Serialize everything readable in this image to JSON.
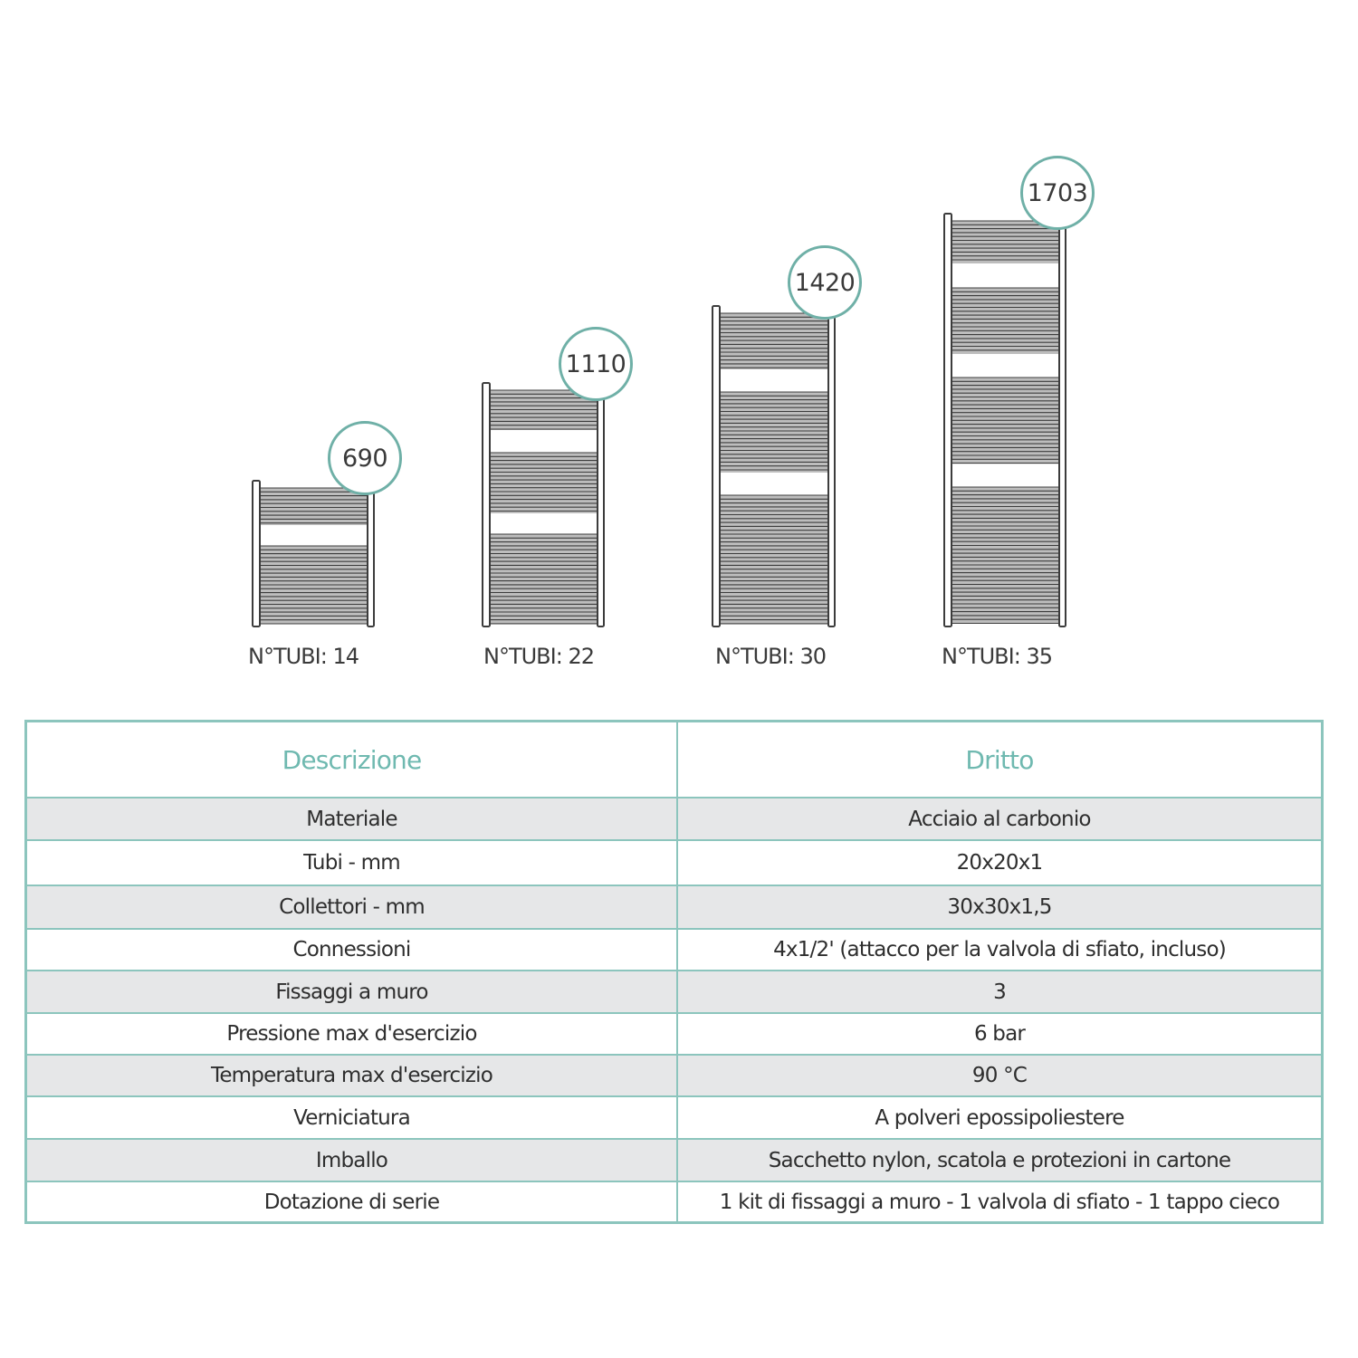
{
  "models": [
    {
      "height": 690,
      "tubes_label": "N°TUBI: 14",
      "tubes": 14
    },
    {
      "height": 1110,
      "tubes_label": "N°TUBI: 22",
      "tubes": 22
    },
    {
      "height": 1420,
      "tubes_label": "N°TUBI: 30",
      "tubes": 30
    },
    {
      "height": 1703,
      "tubes_label": "N°TUBI: 35",
      "tubes": 35
    }
  ],
  "colors": {
    "accent": "#6fb9b0",
    "border": "#8cc5bd",
    "row_gray": "#e6e7e8"
  },
  "table": {
    "headers": [
      "Descrizione",
      "Dritto"
    ],
    "rows": [
      [
        "Materiale",
        "Acciaio al carbonio"
      ],
      [
        "Tubi - mm",
        "20x20x1"
      ],
      [
        "Collettori - mm",
        "30x30x1,5"
      ],
      [
        "Connessioni",
        "4x1/2' (attacco per la valvola di sfiato, incluso)"
      ],
      [
        "Fissaggi a muro",
        "3"
      ],
      [
        "Pressione max d'esercizio",
        "6 bar"
      ],
      [
        "Temperatura max d'esercizio",
        "90 °C"
      ],
      [
        "Verniciatura",
        "A polveri epossipoliestere"
      ],
      [
        "Imballo",
        "Sacchetto nylon, scatola e protezioni in cartone"
      ],
      [
        "Dotazione di serie",
        "1 kit di fissaggi a muro - 1 valvola di sfiato - 1 tappo cieco"
      ]
    ]
  }
}
